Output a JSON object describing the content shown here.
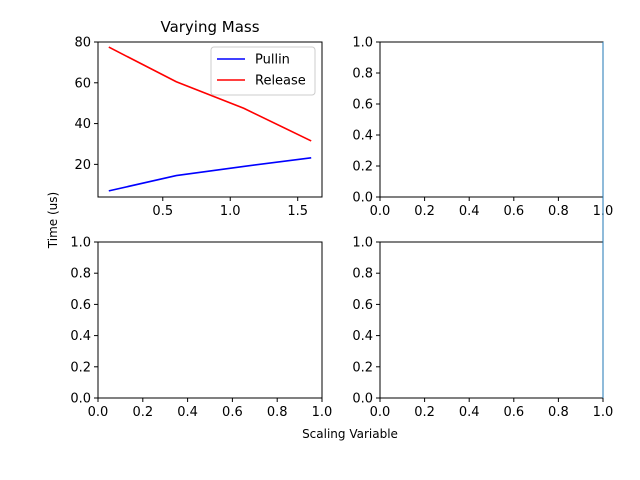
{
  "figure": {
    "xlabel": "Scaling Variable",
    "ylabel": "Time (us)"
  },
  "chart_data": [
    {
      "type": "line",
      "title": "Varying Mass",
      "xlim": [
        0.02,
        1.68
      ],
      "ylim": [
        4.0,
        80.0
      ],
      "xticks": [
        0.5,
        1.0,
        1.5
      ],
      "xtick_labels": [
        "0.5",
        "1.0",
        "1.5"
      ],
      "yticks": [
        20,
        40,
        60,
        80
      ],
      "ytick_labels": [
        "20",
        "40",
        "60",
        "80"
      ],
      "legend": "top-right",
      "series": [
        {
          "name": "Pullin",
          "color": "#0000ff",
          "x": [
            0.1,
            0.6,
            1.1,
            1.6
          ],
          "values": [
            7.0,
            14.5,
            19.0,
            23.2
          ]
        },
        {
          "name": "Release",
          "color": "#ff0000",
          "x": [
            0.1,
            0.6,
            1.1,
            1.6
          ],
          "values": [
            77.5,
            60.5,
            47.5,
            31.5
          ]
        }
      ]
    },
    {
      "type": "line",
      "title": "",
      "xlim": [
        0.0,
        1.0
      ],
      "ylim": [
        0.0,
        1.0
      ],
      "xticks": [
        0.0,
        0.2,
        0.4,
        0.6,
        0.8,
        1.0
      ],
      "xtick_labels": [
        "0.0",
        "0.2",
        "0.4",
        "0.6",
        "0.8",
        "1.0"
      ],
      "yticks": [
        0.0,
        0.2,
        0.4,
        0.6,
        0.8,
        1.0
      ],
      "ytick_labels": [
        "0.0",
        "0.2",
        "0.4",
        "0.6",
        "0.8",
        "1.0"
      ],
      "series": []
    },
    {
      "type": "line",
      "title": "",
      "xlim": [
        0.0,
        1.0
      ],
      "ylim": [
        0.0,
        1.0
      ],
      "xticks": [
        0.0,
        0.2,
        0.4,
        0.6,
        0.8,
        1.0
      ],
      "xtick_labels": [
        "0.0",
        "0.2",
        "0.4",
        "0.6",
        "0.8",
        "1.0"
      ],
      "yticks": [
        0.0,
        0.2,
        0.4,
        0.6,
        0.8,
        1.0
      ],
      "ytick_labels": [
        "0.0",
        "0.2",
        "0.4",
        "0.6",
        "0.8",
        "1.0"
      ],
      "series": []
    },
    {
      "type": "line",
      "title": "",
      "xlim": [
        0.0,
        1.0
      ],
      "ylim": [
        0.0,
        1.0
      ],
      "xticks": [
        0.0,
        0.2,
        0.4,
        0.6,
        0.8,
        1.0
      ],
      "xtick_labels": [
        "0.0",
        "0.2",
        "0.4",
        "0.6",
        "0.8",
        "1.0"
      ],
      "yticks": [
        0.0,
        0.2,
        0.4,
        0.6,
        0.8,
        1.0
      ],
      "ytick_labels": [
        "0.0",
        "0.2",
        "0.4",
        "0.6",
        "0.8",
        "1.0"
      ],
      "series": []
    }
  ],
  "overlay": {
    "color": "#1f77b4",
    "x": [
      1.0,
      1.0
    ]
  }
}
